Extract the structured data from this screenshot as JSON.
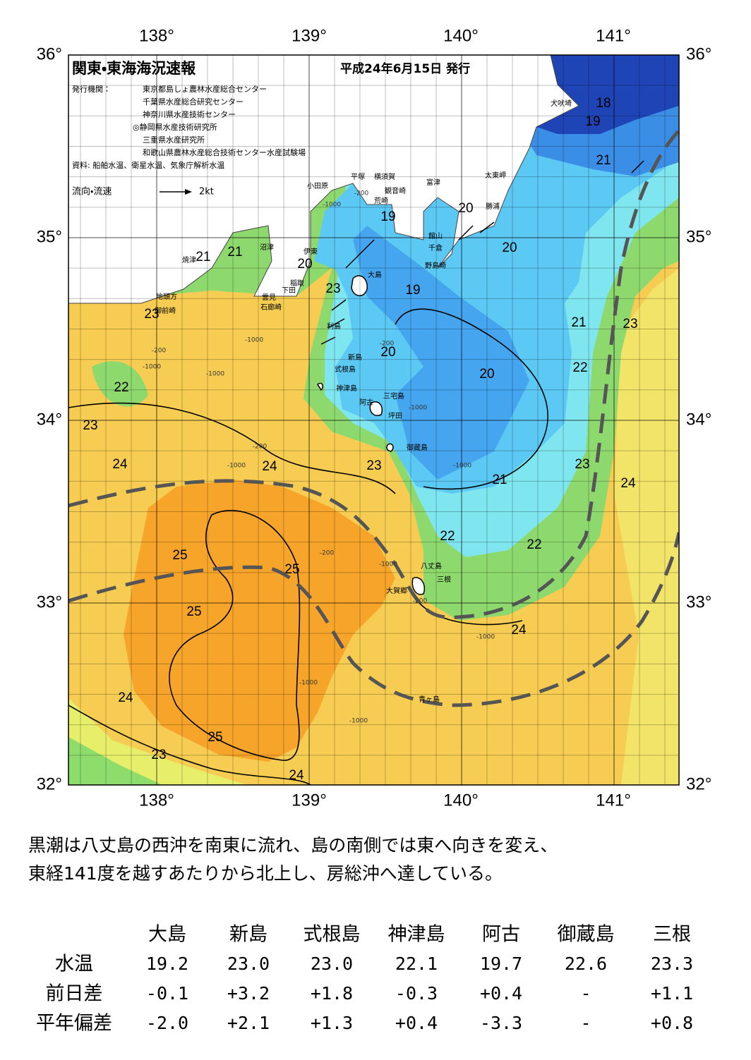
{
  "header": {
    "title": "関東・東海海況速報",
    "date": "平成24年6月15日 発行",
    "publisher_label": "発行機関：",
    "publishers": [
      "東京都島しょ農林水産総合センター",
      "千葉県水産総合研究センター",
      "神奈川県水産技術センター",
      "◎静岡県水産技術研究所",
      "三重県水産研究所",
      "和歌山県農林水産総合技術センター水産試験場"
    ],
    "source": "資料: 船舶水温、衛星水温、気象庁解析水温",
    "legend_label": "流向・流速",
    "legend_speed": "2kt"
  },
  "map": {
    "lon_labels_top": [
      "138°",
      "139°",
      "140°",
      "141°"
    ],
    "lon_labels_bottom": [
      "138°",
      "139°",
      "140°",
      "141°"
    ],
    "lat_labels_left": [
      "36°",
      "35°",
      "34°",
      "33°",
      "32°"
    ],
    "lat_labels_right": [
      "36°",
      "35°",
      "34°",
      "33°",
      "32°"
    ],
    "isotherm_labels": [
      18,
      19,
      21,
      19,
      20,
      21,
      21,
      20,
      20,
      23,
      19,
      23,
      21,
      23,
      20,
      20,
      22,
      22,
      23,
      24,
      24,
      23,
      23,
      24,
      21,
      25,
      25,
      22,
      22,
      25,
      24,
      24,
      25,
      23,
      24
    ],
    "depth_labels": [
      "-1000",
      "-200",
      "-1000",
      "-200",
      "-200",
      "-1000",
      "-1000",
      "-200",
      "-1000",
      "-1000",
      "-200",
      "-1000",
      "-1000",
      "-200",
      "-1000",
      "-1000",
      "-1000"
    ],
    "place_names": [
      "犬吠埼",
      "平塚",
      "横須賀",
      "小田原",
      "観音崎",
      "富津",
      "太東岬",
      "荒崎",
      "勝浦",
      "館山",
      "沼津",
      "伊東",
      "千倉",
      "焼津",
      "野島崎",
      "大島",
      "稲取",
      "下田",
      "雲見",
      "石廊崎",
      "地頭方",
      "御前崎",
      "利島",
      "新島",
      "式根島",
      "神津島",
      "三宅島",
      "阿古",
      "坪田",
      "御蔵島",
      "八丈島",
      "三根",
      "大賀郷",
      "青ヶ島"
    ]
  },
  "description": [
    "黒潮は八丈島の西沖を南東に流れ、島の南側では東へ向きを変え、",
    "東経141度を越すあたりから北上し、房総沖へ達している。"
  ],
  "table": {
    "columns": [
      "大島",
      "新島",
      "式根島",
      "神津島",
      "阿古",
      "御蔵島",
      "三根"
    ],
    "rows": [
      {
        "label": "水温",
        "cells": [
          "19.2",
          "23.0",
          "23.0",
          "22.1",
          "19.7",
          "22.6",
          "23.3"
        ]
      },
      {
        "label": "前日差",
        "cells": [
          "-0.1",
          "+3.2",
          "+1.8",
          "-0.3",
          "+0.4",
          "-",
          "+1.1"
        ]
      },
      {
        "label": "平年偏差",
        "cells": [
          "-2.0",
          "+2.1",
          "+1.3",
          "+0.4",
          "-3.3",
          "-",
          "+0.8"
        ]
      }
    ]
  }
}
